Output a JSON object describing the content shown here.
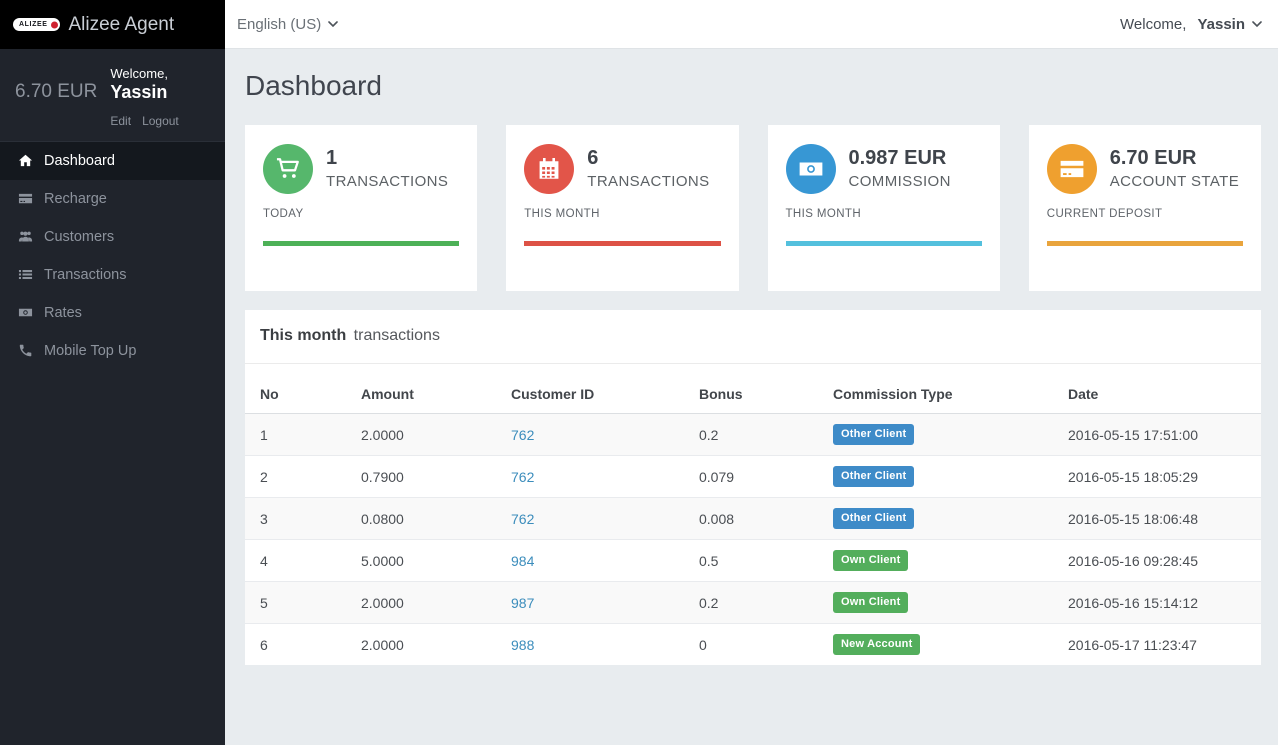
{
  "brand": {
    "badge_text": "ALIZEE",
    "app_name": "Alizee Agent"
  },
  "topbar": {
    "language": "English (US)",
    "welcome_prefix": "Welcome,",
    "username": "Yassin"
  },
  "sidebar": {
    "balance": "6.70 EUR",
    "welcome_prefix": "Welcome,",
    "username": "Yassin",
    "edit_label": "Edit",
    "logout_label": "Logout",
    "items": [
      {
        "label": "Dashboard",
        "icon": "home-icon",
        "active": true
      },
      {
        "label": "Recharge",
        "icon": "credit-card-icon",
        "active": false
      },
      {
        "label": "Customers",
        "icon": "users-icon",
        "active": false
      },
      {
        "label": "Transactions",
        "icon": "list-icon",
        "active": false
      },
      {
        "label": "Rates",
        "icon": "money-icon",
        "active": false
      },
      {
        "label": "Mobile Top Up",
        "icon": "phone-icon",
        "active": false
      }
    ]
  },
  "page": {
    "title": "Dashboard"
  },
  "stat_cards": [
    {
      "value": "1",
      "label": "TRANSACTIONS",
      "sublabel": "TODAY",
      "icon": "cart-icon",
      "circle_color": "#56b76c",
      "bar_color": "#4db157"
    },
    {
      "value": "6",
      "label": "TRANSACTIONS",
      "sublabel": "THIS MONTH",
      "icon": "calendar-icon",
      "circle_color": "#e25549",
      "bar_color": "#dd5246"
    },
    {
      "value": "0.987 EUR",
      "label": "COMMISSION",
      "sublabel": "THIS MONTH",
      "icon": "banknote-icon",
      "circle_color": "#3797d4",
      "bar_color": "#54c0dd"
    },
    {
      "value": "6.70 EUR",
      "label": "ACCOUNT STATE",
      "sublabel": "CURRENT DEPOSIT",
      "icon": "credit-card-icon",
      "circle_color": "#efa02f",
      "bar_color": "#e9a43c"
    }
  ],
  "transactions_panel": {
    "title_bold": "This month",
    "title_rest": "transactions",
    "columns": [
      "No",
      "Amount",
      "Customer ID",
      "Bonus",
      "Commission Type",
      "Date"
    ],
    "rows": [
      {
        "no": "1",
        "amount": "2.0000",
        "customer_id": "762",
        "bonus": "0.2",
        "commission_type": "Other Client",
        "badge_color": "#3e8bc8",
        "date": "2016-05-15 17:51:00"
      },
      {
        "no": "2",
        "amount": "0.7900",
        "customer_id": "762",
        "bonus": "0.079",
        "commission_type": "Other Client",
        "badge_color": "#3e8bc8",
        "date": "2016-05-15 18:05:29"
      },
      {
        "no": "3",
        "amount": "0.0800",
        "customer_id": "762",
        "bonus": "0.008",
        "commission_type": "Other Client",
        "badge_color": "#3e8bc8",
        "date": "2016-05-15 18:06:48"
      },
      {
        "no": "4",
        "amount": "5.0000",
        "customer_id": "984",
        "bonus": "0.5",
        "commission_type": "Own Client",
        "badge_color": "#53ae5c",
        "date": "2016-05-16 09:28:45"
      },
      {
        "no": "5",
        "amount": "2.0000",
        "customer_id": "987",
        "bonus": "0.2",
        "commission_type": "Own Client",
        "badge_color": "#53ae5c",
        "date": "2016-05-16 15:14:12"
      },
      {
        "no": "6",
        "amount": "2.0000",
        "customer_id": "988",
        "bonus": "0",
        "commission_type": "New Account",
        "badge_color": "#53ae5c",
        "date": "2016-05-17 11:23:47"
      }
    ]
  }
}
